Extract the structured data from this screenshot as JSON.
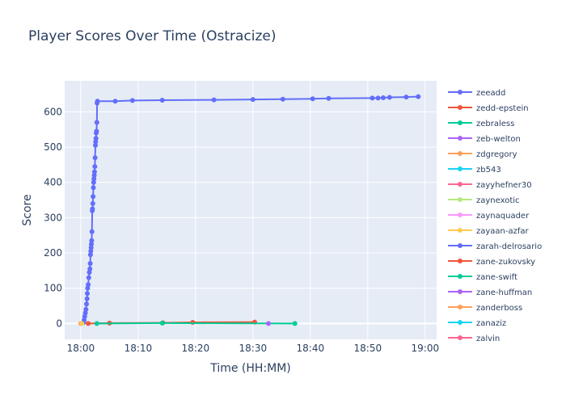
{
  "chart_data": {
    "type": "line",
    "title": "Player Scores Over Time (Ostracize)",
    "xlabel": "Time (HH:MM)",
    "ylabel": "Score",
    "x_ticks": [
      "18:00",
      "18:10",
      "18:20",
      "18:30",
      "18:40",
      "18:50",
      "19:00"
    ],
    "x_tick_minutes": [
      0,
      10,
      20,
      30,
      40,
      50,
      60
    ],
    "y_ticks": [
      0,
      100,
      200,
      300,
      400,
      500,
      600
    ],
    "xlim_minutes": [
      -2.8,
      62.0
    ],
    "ylim": [
      -45,
      688
    ],
    "grid": true,
    "legend_position": "right",
    "series": [
      {
        "name": "zeeadd",
        "color": "#636efa",
        "x": [
          0.5,
          0.6,
          0.7,
          0.8,
          0.9,
          1.0,
          1.1,
          1.15,
          1.2,
          1.3,
          1.4,
          1.5,
          1.6,
          1.65,
          1.7,
          1.75,
          1.8,
          1.85,
          1.9,
          1.95,
          2.0,
          2.05,
          2.1,
          2.15,
          2.2,
          2.25,
          2.3,
          2.35,
          2.4,
          2.45,
          2.5,
          2.55,
          2.6,
          2.65,
          2.7,
          2.75,
          2.8,
          2.85,
          2.9,
          6.0,
          9.0,
          14.2,
          23.2,
          30.0,
          35.2,
          40.4,
          43.2,
          50.8,
          51.8,
          52.7,
          53.8,
          56.7,
          58.8
        ],
        "y": [
          3,
          10,
          20,
          30,
          40,
          55,
          70,
          85,
          100,
          110,
          130,
          145,
          155,
          170,
          195,
          205,
          215,
          225,
          235,
          260,
          320,
          325,
          340,
          360,
          385,
          400,
          410,
          420,
          430,
          445,
          470,
          505,
          515,
          525,
          540,
          545,
          570,
          625,
          630,
          630,
          632,
          633,
          634,
          635,
          636,
          637,
          638,
          639,
          639,
          640,
          641,
          642,
          643
        ]
      },
      {
        "name": "zedd-epstein",
        "color": "#ef553b",
        "x": [
          1.3,
          5.0,
          14.3,
          19.5,
          30.3
        ],
        "y": [
          0,
          1,
          2,
          3,
          4
        ]
      },
      {
        "name": "zebraless",
        "color": "#00cc96",
        "x": [
          2.8,
          14.2,
          37.3
        ],
        "y": [
          0,
          1,
          0
        ]
      },
      {
        "name": "zeb-welton",
        "color": "#ab63fa",
        "x": [
          32.7
        ],
        "y": [
          0
        ]
      },
      {
        "name": "zdgregory",
        "color": "#ffa15a",
        "x": [
          0.0
        ],
        "y": [
          0
        ]
      },
      {
        "name": "zb543",
        "color": "#19d3f3",
        "x": [],
        "y": []
      },
      {
        "name": "zayyhefner30",
        "color": "#ff6692",
        "x": [],
        "y": []
      },
      {
        "name": "zaynexotic",
        "color": "#b6e880",
        "x": [],
        "y": []
      },
      {
        "name": "zaynaquader",
        "color": "#ff97ff",
        "x": [],
        "y": []
      },
      {
        "name": "zayaan-azfar",
        "color": "#fecb52",
        "x": [
          0.2
        ],
        "y": [
          0
        ]
      },
      {
        "name": "zarah-delrosario",
        "color": "#636efa",
        "x": [],
        "y": []
      },
      {
        "name": "zane-zukovsky",
        "color": "#ef553b",
        "x": [],
        "y": []
      },
      {
        "name": "zane-swift",
        "color": "#00cc96",
        "x": [],
        "y": []
      },
      {
        "name": "zane-huffman",
        "color": "#ab63fa",
        "x": [],
        "y": []
      },
      {
        "name": "zanderboss",
        "color": "#ffa15a",
        "x": [],
        "y": []
      },
      {
        "name": "zanaziz",
        "color": "#19d3f3",
        "x": [],
        "y": []
      },
      {
        "name": "zalvin",
        "color": "#ff6692",
        "x": [],
        "y": []
      }
    ]
  }
}
